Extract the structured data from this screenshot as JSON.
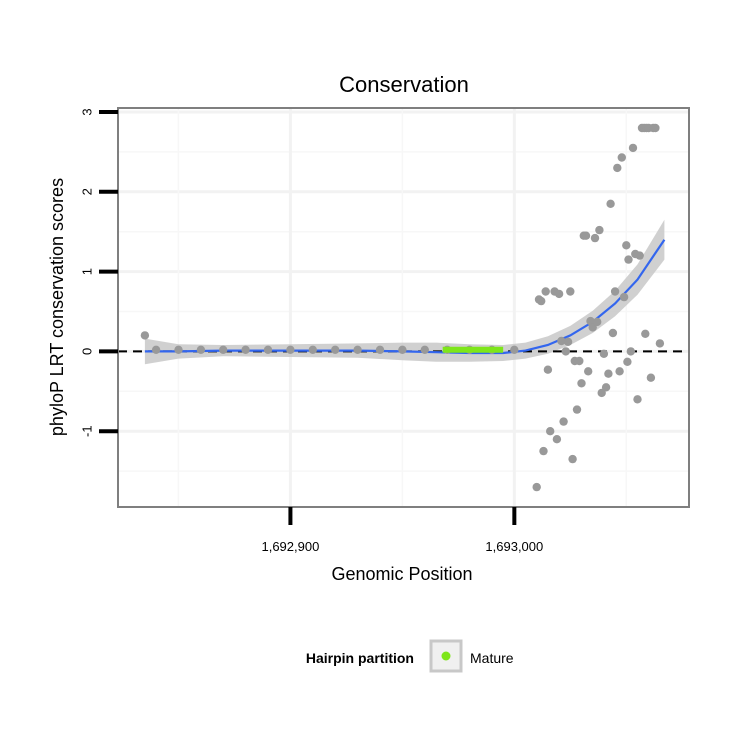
{
  "chart_data": {
    "type": "scatter",
    "title": "Conservation",
    "xlabel": "Genomic Position",
    "ylabel": "phyloP LRT conservation scores",
    "xlim": [
      1692823,
      1693078
    ],
    "ylim": [
      -1.95,
      3.05
    ],
    "x_ticks": [
      {
        "value": 1692900,
        "label": "1,692,900"
      },
      {
        "value": 1693000,
        "label": "1,693,000"
      }
    ],
    "y_ticks": [
      {
        "value": -1,
        "label": "-1"
      },
      {
        "value": 0,
        "label": "0"
      },
      {
        "value": 1,
        "label": "1"
      },
      {
        "value": 2,
        "label": "2"
      },
      {
        "value": 3,
        "label": "3"
      }
    ],
    "grid": true,
    "reference_line": {
      "y": 0,
      "style": "dashed"
    },
    "smooth": {
      "color": "#3366ee",
      "band_color": "#c8c8c8",
      "points": [
        [
          1692835,
          0.0,
          0.16
        ],
        [
          1692850,
          0.0,
          0.09
        ],
        [
          1692870,
          0.01,
          0.07
        ],
        [
          1692900,
          0.01,
          0.08
        ],
        [
          1692930,
          0.01,
          0.09
        ],
        [
          1692950,
          0.0,
          0.11
        ],
        [
          1692965,
          -0.01,
          0.12
        ],
        [
          1692980,
          -0.02,
          0.11
        ],
        [
          1692995,
          -0.02,
          0.1
        ],
        [
          1693005,
          0.01,
          0.1
        ],
        [
          1693015,
          0.08,
          0.11
        ],
        [
          1693025,
          0.2,
          0.12
        ],
        [
          1693035,
          0.37,
          0.14
        ],
        [
          1693045,
          0.6,
          0.16
        ],
        [
          1693055,
          0.9,
          0.19
        ],
        [
          1693067,
          1.4,
          0.25
        ]
      ]
    },
    "highlight_segment": {
      "color": "#7ee61a",
      "x": [
        1692968,
        1692995
      ],
      "y": 0.02
    },
    "points_color": "#999999",
    "points": [
      [
        1692835,
        0.2
      ],
      [
        1692840,
        0.02
      ],
      [
        1692850,
        0.02
      ],
      [
        1692860,
        0.02
      ],
      [
        1692870,
        0.02
      ],
      [
        1692880,
        0.02
      ],
      [
        1692890,
        0.02
      ],
      [
        1692900,
        0.02
      ],
      [
        1692910,
        0.02
      ],
      [
        1692920,
        0.02
      ],
      [
        1692930,
        0.02
      ],
      [
        1692940,
        0.02
      ],
      [
        1692950,
        0.02
      ],
      [
        1692960,
        0.02
      ],
      [
        1692970,
        0.02
      ],
      [
        1692980,
        0.02
      ],
      [
        1692990,
        0.02
      ],
      [
        1693000,
        0.02
      ],
      [
        1693010,
        -1.7
      ],
      [
        1693011,
        0.65
      ],
      [
        1693012,
        0.63
      ],
      [
        1693013,
        -1.25
      ],
      [
        1693014,
        0.75
      ],
      [
        1693015,
        -0.23
      ],
      [
        1693016,
        -1.0
      ],
      [
        1693018,
        0.75
      ],
      [
        1693019,
        -1.1
      ],
      [
        1693020,
        0.72
      ],
      [
        1693021,
        0.13
      ],
      [
        1693022,
        -0.88
      ],
      [
        1693023,
        0.0
      ],
      [
        1693024,
        0.12
      ],
      [
        1693025,
        0.75
      ],
      [
        1693026,
        -1.35
      ],
      [
        1693027,
        -0.12
      ],
      [
        1693028,
        -0.73
      ],
      [
        1693029,
        -0.12
      ],
      [
        1693030,
        -0.4
      ],
      [
        1693031,
        1.45
      ],
      [
        1693032,
        1.45
      ],
      [
        1693033,
        -0.25
      ],
      [
        1693034,
        0.38
      ],
      [
        1693035,
        0.3
      ],
      [
        1693036,
        1.42
      ],
      [
        1693037,
        0.37
      ],
      [
        1693038,
        1.52
      ],
      [
        1693039,
        -0.52
      ],
      [
        1693040,
        -0.03
      ],
      [
        1693041,
        -0.45
      ],
      [
        1693042,
        -0.28
      ],
      [
        1693043,
        1.85
      ],
      [
        1693044,
        0.23
      ],
      [
        1693045,
        0.75
      ],
      [
        1693046,
        2.3
      ],
      [
        1693047,
        -0.25
      ],
      [
        1693048,
        2.43
      ],
      [
        1693049,
        0.68
      ],
      [
        1693050,
        1.33
      ],
      [
        1693050.5,
        -0.13
      ],
      [
        1693051,
        1.15
      ],
      [
        1693052,
        0.0
      ],
      [
        1693053,
        2.55
      ],
      [
        1693054,
        1.22
      ],
      [
        1693055,
        -0.6
      ],
      [
        1693056,
        1.2
      ],
      [
        1693057,
        2.8
      ],
      [
        1693058,
        2.8
      ],
      [
        1693058.5,
        0.22
      ],
      [
        1693059,
        2.8
      ],
      [
        1693060,
        2.8
      ],
      [
        1693061,
        -0.33
      ],
      [
        1693062,
        2.8
      ],
      [
        1693063,
        2.8
      ],
      [
        1693065,
        0.1
      ]
    ],
    "legend": {
      "title": "Hairpin partition",
      "entries": [
        {
          "label": "Mature",
          "color": "#7ee61a"
        }
      ],
      "placement": "bottom"
    }
  }
}
